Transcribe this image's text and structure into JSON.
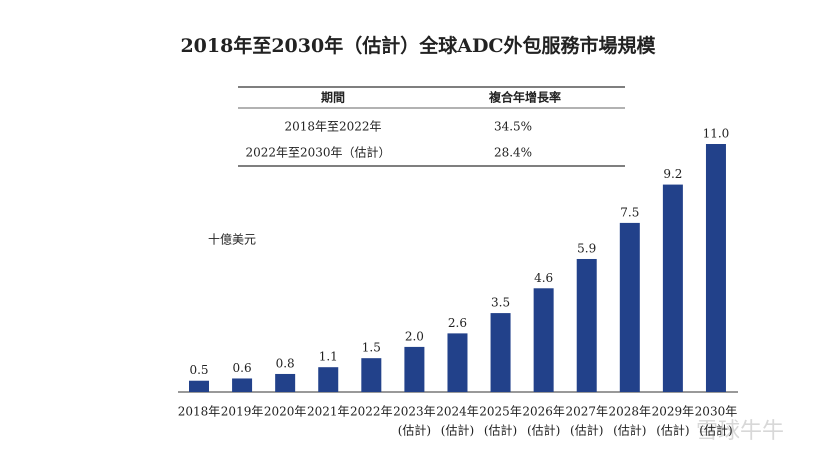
{
  "chart_data": {
    "type": "bar",
    "title": "2018年至2030年（估計）全球ADC外包服務市場規模",
    "y_label": "十億美元",
    "categories": [
      [
        "2018年"
      ],
      [
        "2019年"
      ],
      [
        "2020年"
      ],
      [
        "2021年"
      ],
      [
        "2022年"
      ],
      [
        "2023年",
        "(估計)"
      ],
      [
        "2024年",
        "(估計)"
      ],
      [
        "2025年",
        "(估計)"
      ],
      [
        "2026年",
        "(估計)"
      ],
      [
        "2027年",
        "(估計)"
      ],
      [
        "2028年",
        "(估計)"
      ],
      [
        "2029年",
        "(估計)"
      ],
      [
        "2030年",
        "(估計)"
      ]
    ],
    "values": [
      0.5,
      0.6,
      0.8,
      1.1,
      1.5,
      2.0,
      2.6,
      3.5,
      4.6,
      5.9,
      7.5,
      9.2,
      11.0
    ],
    "value_labels": [
      "0.5",
      "0.6",
      "0.8",
      "1.1",
      "1.5",
      "2.0",
      "2.6",
      "3.5",
      "4.6",
      "5.9",
      "7.5",
      "9.2",
      "11.0"
    ],
    "color": "#22418a",
    "table": {
      "headers": [
        "期間",
        "複合年增長率"
      ],
      "rows": [
        [
          "2018年至2022年",
          "34.5%"
        ],
        [
          "2022年至2030年（估計）",
          "28.4%"
        ]
      ]
    },
    "watermark": "雪球牛牛"
  }
}
